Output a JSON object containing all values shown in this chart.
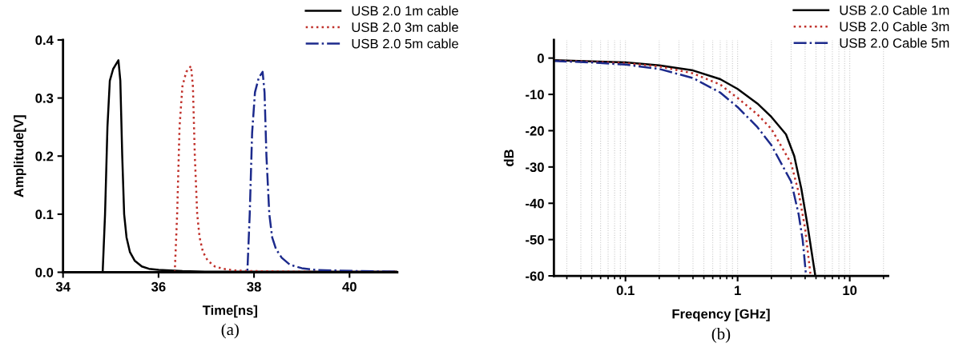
{
  "chart_data": [
    {
      "type": "line",
      "xlabel": "Time[ns]",
      "ylabel": "Amplitude[V]",
      "xlim": [
        34,
        41
      ],
      "xticks": [
        34,
        36,
        38,
        40
      ],
      "ylim": [
        0,
        0.4
      ],
      "yticks": [
        {
          "value": 0,
          "label": "0.0"
        },
        0.1,
        0.2,
        0.3,
        0.4
      ],
      "legend": "top right",
      "annotations": [
        "(a)"
      ],
      "series": [
        {
          "name": "USB 2.0 1m cable",
          "color": "#000000",
          "line_style": "solid",
          "x": [
            34,
            34.83,
            34.88,
            34.93,
            34.98,
            35.05,
            35.16,
            35.2,
            35.24,
            35.28,
            35.33,
            35.4,
            35.5,
            35.65,
            35.8,
            36.0,
            36.5,
            37.0,
            38.0,
            41.0
          ],
          "values": [
            0,
            0,
            0.1,
            0.25,
            0.33,
            0.35,
            0.365,
            0.33,
            0.2,
            0.1,
            0.06,
            0.035,
            0.02,
            0.01,
            0.006,
            0.004,
            0.002,
            0.001,
            0.001,
            0.001
          ]
        },
        {
          "name": "USB 2.0 3m cable",
          "color": "#c0302a",
          "line_style": "dotted",
          "x": [
            34,
            36.34,
            36.39,
            36.44,
            36.5,
            36.58,
            36.68,
            36.72,
            36.76,
            36.81,
            36.86,
            36.93,
            37.03,
            37.18,
            37.35,
            37.6,
            38.0,
            39.0,
            41.0
          ],
          "values": [
            0,
            0,
            0.1,
            0.25,
            0.32,
            0.345,
            0.355,
            0.32,
            0.2,
            0.1,
            0.06,
            0.035,
            0.02,
            0.01,
            0.006,
            0.003,
            0.002,
            0.001,
            0.001
          ]
        },
        {
          "name": "USB 2.0 5m cable",
          "color": "#1c2a8c",
          "line_style": "dashdot",
          "x": [
            34,
            37.86,
            37.91,
            37.96,
            38.02,
            38.1,
            38.18,
            38.22,
            38.26,
            38.32,
            38.38,
            38.46,
            38.58,
            38.75,
            39.0,
            39.3,
            39.7,
            40.2,
            41.0
          ],
          "values": [
            0,
            0,
            0.1,
            0.24,
            0.31,
            0.335,
            0.345,
            0.31,
            0.2,
            0.1,
            0.06,
            0.04,
            0.025,
            0.013,
            0.007,
            0.004,
            0.003,
            0.002,
            0.001
          ]
        }
      ]
    },
    {
      "type": "line",
      "xlabel": "Freqency [GHz]",
      "ylabel": "dB",
      "log": "x",
      "xlim": [
        0.023,
        22
      ],
      "xticks": [
        0.1,
        1,
        10
      ],
      "ylim": [
        -60,
        5
      ],
      "yticks": [
        0,
        -10,
        -20,
        -30,
        -40,
        -50,
        -60
      ],
      "grid": "x",
      "legend": "top right",
      "annotations": [
        "(b)"
      ],
      "series": [
        {
          "name": "USB 2.0 Cable 1m",
          "color": "#000000",
          "line_style": "solid",
          "x": [
            0.023,
            0.05,
            0.1,
            0.2,
            0.4,
            0.7,
            1,
            1.5,
            2,
            2.7,
            3.2,
            3.7,
            4.2,
            4.93
          ],
          "values": [
            -0.6,
            -0.9,
            -1.2,
            -2,
            -3.4,
            -5.8,
            -8.5,
            -12.5,
            -16.2,
            -21,
            -27,
            -36,
            -46,
            -60
          ]
        },
        {
          "name": "USB 2.0 Cable 3m",
          "color": "#c0302a",
          "line_style": "dotted",
          "x": [
            0.023,
            0.05,
            0.1,
            0.2,
            0.4,
            0.7,
            1,
            1.5,
            2,
            3,
            3.5,
            4,
            4.48
          ],
          "values": [
            -0.7,
            -1,
            -1.4,
            -2.3,
            -4.2,
            -7.3,
            -11,
            -15.5,
            -19.5,
            -29,
            -37,
            -47,
            -60
          ]
        },
        {
          "name": "USB 2.0 Cable 5m",
          "color": "#1c2a8c",
          "line_style": "dashdot",
          "x": [
            0.023,
            0.05,
            0.1,
            0.2,
            0.4,
            0.7,
            1,
            1.5,
            2,
            3,
            3.5,
            3.8,
            4.08
          ],
          "values": [
            -0.8,
            -1.2,
            -1.8,
            -3,
            -5.5,
            -9.5,
            -13.5,
            -19,
            -24,
            -34,
            -43,
            -50,
            -60
          ]
        }
      ]
    }
  ]
}
